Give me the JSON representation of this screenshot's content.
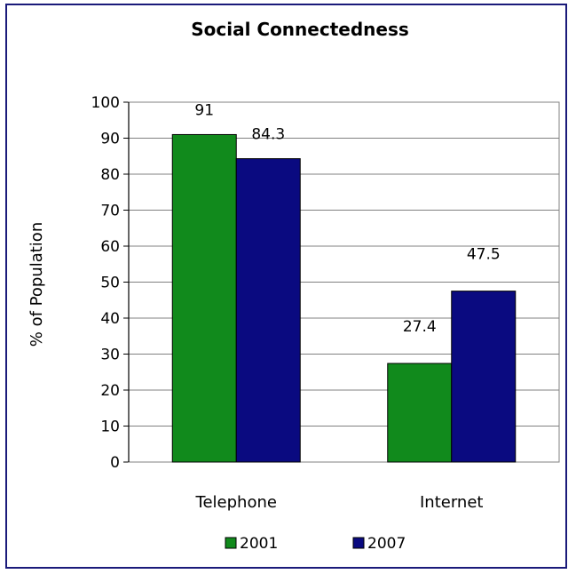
{
  "chart_data": {
    "type": "bar",
    "title": "Social Connectedness",
    "xlabel": "",
    "ylabel": "% of Population",
    "categories": [
      "Telephone",
      "Internet"
    ],
    "series": [
      {
        "name": "2001",
        "values": [
          91,
          27.4
        ],
        "color": "#118a1c"
      },
      {
        "name": "2007",
        "values": [
          84.3,
          47.5
        ],
        "color": "#0a0a80"
      }
    ],
    "ylim": [
      0,
      100
    ],
    "yticks": [
      0,
      10,
      20,
      30,
      40,
      50,
      60,
      70,
      80,
      90,
      100
    ],
    "data_labels": [
      [
        "91",
        "27.4"
      ],
      [
        "84.3",
        "47.5"
      ]
    ],
    "grid": true,
    "legend": "bottom",
    "bar_border": "#000000",
    "gridline_color": "#808080"
  }
}
